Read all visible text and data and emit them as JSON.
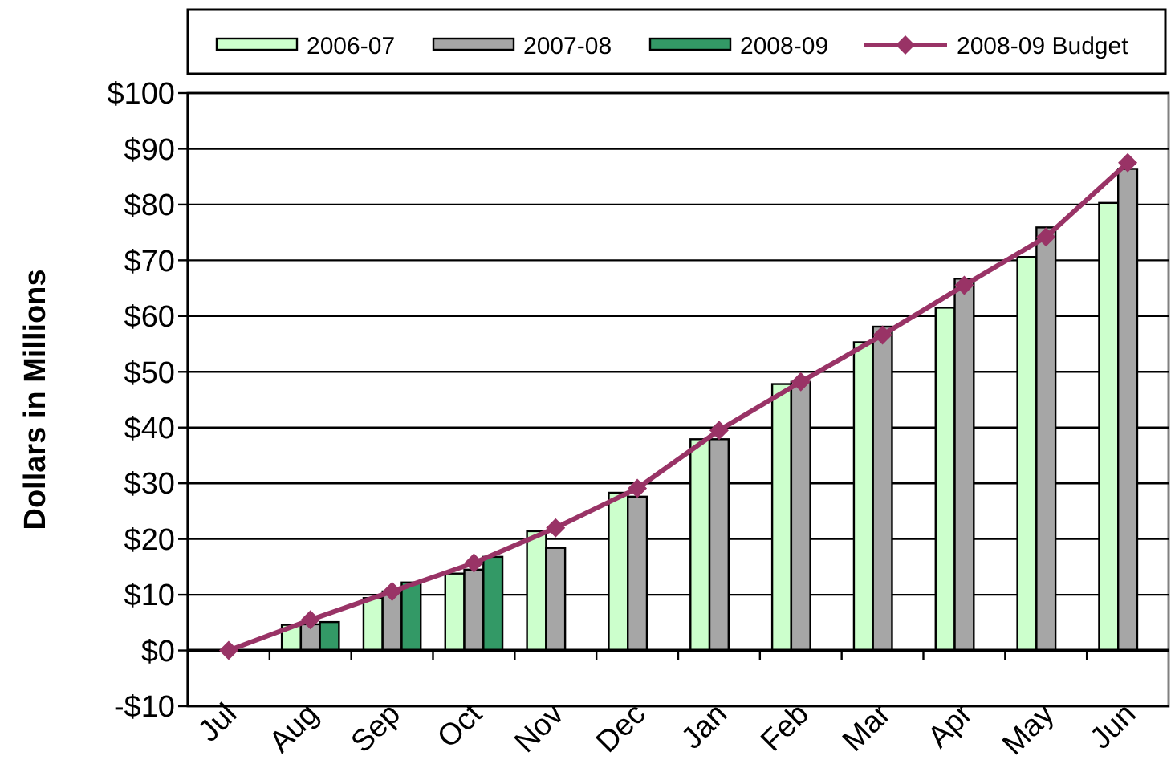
{
  "chart_data": {
    "type": "bar",
    "ylabel": "Dollars in Millions",
    "categories": [
      "Jul",
      "Aug",
      "Sep",
      "Oct",
      "Nov",
      "Dec",
      "Jan",
      "Feb",
      "Mar",
      "Apr",
      "May",
      "Jun"
    ],
    "series": [
      {
        "name": "2006-07",
        "color": "#ccffcc",
        "values": [
          null,
          4.6,
          9.4,
          13.8,
          21.4,
          28.3,
          37.9,
          47.8,
          55.3,
          61.5,
          70.6,
          80.3
        ]
      },
      {
        "name": "2007-08",
        "color": "#a6a6a6",
        "values": [
          null,
          4.7,
          10.6,
          14.5,
          18.4,
          27.6,
          37.9,
          48.2,
          58.1,
          66.7,
          75.9,
          86.4
        ]
      },
      {
        "name": "2008-09",
        "color": "#339966",
        "values": [
          null,
          5.1,
          12.2,
          16.8,
          null,
          null,
          null,
          null,
          null,
          null,
          null,
          null
        ]
      },
      {
        "name": "2008-09 Budget",
        "type": "line",
        "color": "#993366",
        "marker": "diamond",
        "values": [
          0,
          5.5,
          10.6,
          15.7,
          22.0,
          29.1,
          39.5,
          48.2,
          56.6,
          65.5,
          74.2,
          87.5
        ]
      }
    ],
    "ylim": [
      -10,
      100
    ],
    "yticks": [
      {
        "value": -10,
        "label": "-$10"
      },
      {
        "value": 0,
        "label": "$0"
      },
      {
        "value": 10,
        "label": "$10"
      },
      {
        "value": 20,
        "label": "$20"
      },
      {
        "value": 30,
        "label": "$30"
      },
      {
        "value": 40,
        "label": "$40"
      },
      {
        "value": 50,
        "label": "$50"
      },
      {
        "value": 60,
        "label": "$60"
      },
      {
        "value": 70,
        "label": "$70"
      },
      {
        "value": 80,
        "label": "$80"
      },
      {
        "value": 90,
        "label": "$90"
      },
      {
        "value": 100,
        "label": "$100"
      }
    ],
    "grid": "y",
    "legend": "top"
  }
}
